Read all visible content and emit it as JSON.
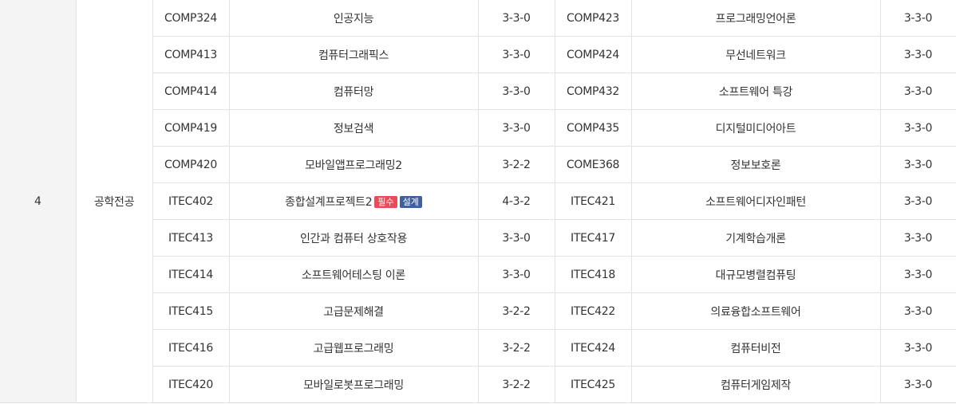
{
  "year": "4",
  "category": "공학전공",
  "rows": [
    {
      "left": {
        "code": "COMP324",
        "name": "인공지능",
        "credit": "3-3-0"
      },
      "right": {
        "code": "COMP423",
        "name": "프로그래밍언어론",
        "credit": "3-3-0"
      }
    },
    {
      "left": {
        "code": "COMP413",
        "name": "컴퓨터그래픽스",
        "credit": "3-3-0"
      },
      "right": {
        "code": "COMP424",
        "name": "무선네트워크",
        "credit": "3-3-0"
      }
    },
    {
      "left": {
        "code": "COMP414",
        "name": "컴퓨터망",
        "credit": "3-3-0"
      },
      "right": {
        "code": "COMP432",
        "name": "소프트웨어 특강",
        "credit": "3-3-0"
      }
    },
    {
      "left": {
        "code": "COMP419",
        "name": "정보검색",
        "credit": "3-3-0"
      },
      "right": {
        "code": "COMP435",
        "name": "디지털미디어아트",
        "credit": "3-3-0"
      }
    },
    {
      "left": {
        "code": "COMP420",
        "name": "모바일앱프로그래밍2",
        "credit": "3-2-2"
      },
      "right": {
        "code": "COME368",
        "name": "정보보호론",
        "credit": "3-3-0"
      }
    },
    {
      "left": {
        "code": "ITEC402",
        "name": "종합설계프로젝트2",
        "credit": "4-3-2",
        "badges": [
          "필수",
          "설계"
        ]
      },
      "right": {
        "code": "ITEC421",
        "name": "소프트웨어디자인패턴",
        "credit": "3-3-0"
      }
    },
    {
      "left": {
        "code": "ITEC413",
        "name": "인간과 컴퓨터 상호작용",
        "credit": "3-3-0"
      },
      "right": {
        "code": "ITEC417",
        "name": "기계학습개론",
        "credit": "3-3-0"
      }
    },
    {
      "left": {
        "code": "ITEC414",
        "name": "소프트웨어테스팅 이론",
        "credit": "3-3-0"
      },
      "right": {
        "code": "ITEC418",
        "name": "대규모병렬컴퓨팅",
        "credit": "3-3-0"
      }
    },
    {
      "left": {
        "code": "ITEC415",
        "name": "고급문제해결",
        "credit": "3-2-2"
      },
      "right": {
        "code": "ITEC422",
        "name": "의료융합소프트웨어",
        "credit": "3-3-0"
      }
    },
    {
      "left": {
        "code": "ITEC416",
        "name": "고급웹프로그래밍",
        "credit": "3-2-2"
      },
      "right": {
        "code": "ITEC424",
        "name": "컴퓨터비전",
        "credit": "3-3-0"
      }
    },
    {
      "left": {
        "code": "ITEC420",
        "name": "모바일로봇프로그래밍",
        "credit": "3-2-2"
      },
      "right": {
        "code": "ITEC425",
        "name": "컴퓨터게임제작",
        "credit": "3-3-0"
      }
    }
  ]
}
